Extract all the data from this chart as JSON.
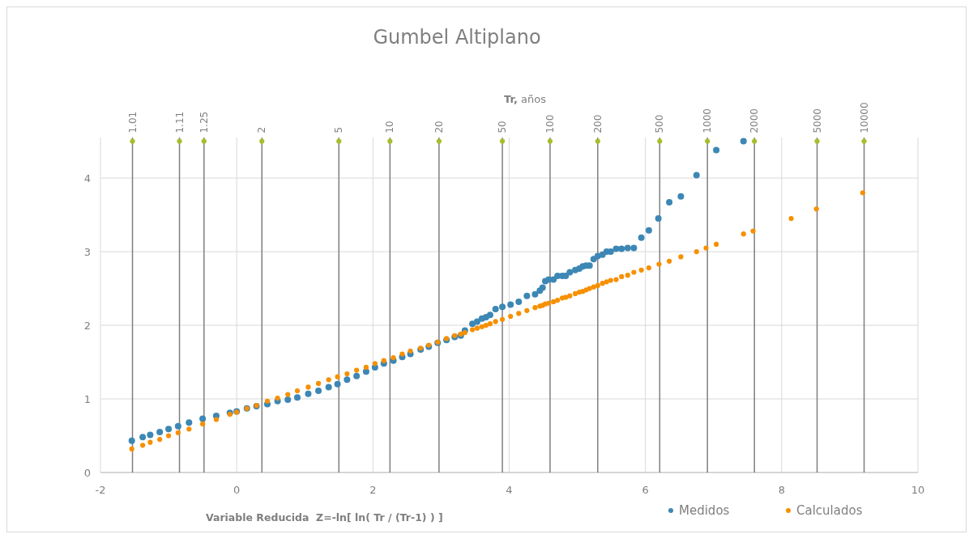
{
  "chart_data": {
    "type": "scatter",
    "title": "Gumbel Altiplano",
    "xlabel": "Variable Reducida  Z=-ln[ ln( Tr / (Tr-1) ) ]",
    "annotations": [
      "Tr, años",
      {
        "text": "1.01",
        "x": -1.53,
        "y": 4.5
      },
      {
        "text": "1.11",
        "x": -0.84,
        "y": 4.5
      },
      {
        "text": "1.25",
        "x": -0.48,
        "y": 4.5
      },
      {
        "text": "2",
        "x": 0.37,
        "y": 4.5
      },
      {
        "text": "5",
        "x": 1.5,
        "y": 4.5
      },
      {
        "text": "10",
        "x": 2.25,
        "y": 4.5
      },
      {
        "text": "20",
        "x": 2.97,
        "y": 4.5
      },
      {
        "text": "50",
        "x": 3.9,
        "y": 4.5
      },
      {
        "text": "100",
        "x": 4.6,
        "y": 4.5
      },
      {
        "text": "200",
        "x": 5.3,
        "y": 4.5
      },
      {
        "text": "500",
        "x": 6.21,
        "y": 4.5
      },
      {
        "text": "1000",
        "x": 6.91,
        "y": 4.5
      },
      {
        "text": "2000",
        "x": 7.6,
        "y": 4.5
      },
      {
        "text": "5000",
        "x": 8.52,
        "y": 4.5
      },
      {
        "text": "10000",
        "x": 9.21,
        "y": 4.5
      }
    ],
    "xlim": [
      -2,
      10
    ],
    "xticks": [
      -2,
      0,
      2,
      4,
      6,
      8,
      10
    ],
    "ylim": [
      0,
      4.55
    ],
    "yticks": [
      0,
      1,
      2,
      3,
      4
    ],
    "grid": true,
    "legend": "bottom right",
    "marker": "circle",
    "series": [
      {
        "name": "Medidos",
        "color": "#3d87b5",
        "x": [
          -1.54,
          -1.38,
          -1.27,
          -1.13,
          -1.0,
          -0.86,
          -0.7,
          -0.5,
          -0.3,
          -0.1,
          0.0,
          0.15,
          0.29,
          0.45,
          0.6,
          0.75,
          0.89,
          1.05,
          1.2,
          1.35,
          1.48,
          1.62,
          1.76,
          1.9,
          2.03,
          2.16,
          2.3,
          2.43,
          2.55,
          2.7,
          2.82,
          2.95,
          3.08,
          3.2,
          3.29,
          3.35,
          3.46,
          3.53,
          3.6,
          3.66,
          3.72,
          3.8,
          3.9,
          4.02,
          4.14,
          4.26,
          4.38,
          4.45,
          4.49,
          4.53,
          4.58,
          4.65,
          4.71,
          4.78,
          4.83,
          4.89,
          4.97,
          5.03,
          5.08,
          5.13,
          5.18,
          5.24,
          5.3,
          5.37,
          5.43,
          5.49,
          5.57,
          5.65,
          5.74,
          5.83,
          5.94,
          6.05,
          6.19,
          6.35,
          6.52,
          6.75,
          7.04,
          7.44
        ],
        "values": [
          0.43,
          0.48,
          0.51,
          0.55,
          0.59,
          0.63,
          0.68,
          0.73,
          0.77,
          0.81,
          0.83,
          0.87,
          0.9,
          0.93,
          0.97,
          0.99,
          1.02,
          1.07,
          1.11,
          1.16,
          1.2,
          1.26,
          1.31,
          1.37,
          1.43,
          1.48,
          1.52,
          1.57,
          1.61,
          1.67,
          1.71,
          1.76,
          1.8,
          1.84,
          1.86,
          1.93,
          2.02,
          2.05,
          2.09,
          2.11,
          2.14,
          2.22,
          2.25,
          2.28,
          2.32,
          2.4,
          2.42,
          2.47,
          2.51,
          2.6,
          2.62,
          2.62,
          2.67,
          2.67,
          2.67,
          2.72,
          2.75,
          2.77,
          2.8,
          2.81,
          2.81,
          2.9,
          2.94,
          2.96,
          3.0,
          3.0,
          3.04,
          3.04,
          3.05,
          3.05,
          3.19,
          3.29,
          3.45,
          3.67,
          3.75,
          4.04,
          4.38,
          4.5
        ]
      },
      {
        "name": "Calculados",
        "color": "#f79000",
        "x": [
          -1.54,
          -1.38,
          -1.27,
          -1.13,
          -1.0,
          -0.86,
          -0.7,
          -0.5,
          -0.3,
          -0.1,
          0.0,
          0.15,
          0.29,
          0.45,
          0.6,
          0.75,
          0.89,
          1.05,
          1.2,
          1.35,
          1.48,
          1.62,
          1.76,
          1.9,
          2.03,
          2.16,
          2.3,
          2.43,
          2.55,
          2.7,
          2.82,
          2.95,
          3.08,
          3.2,
          3.29,
          3.35,
          3.46,
          3.53,
          3.6,
          3.66,
          3.72,
          3.8,
          3.9,
          4.02,
          4.14,
          4.26,
          4.38,
          4.45,
          4.49,
          4.53,
          4.58,
          4.65,
          4.71,
          4.78,
          4.83,
          4.89,
          4.97,
          5.03,
          5.08,
          5.13,
          5.18,
          5.24,
          5.3,
          5.37,
          5.43,
          5.49,
          5.57,
          5.65,
          5.74,
          5.83,
          5.94,
          6.05,
          6.2,
          6.35,
          6.52,
          6.75,
          6.89,
          7.04,
          7.44,
          7.58,
          8.14,
          8.51,
          9.19
        ],
        "values": [
          0.32,
          0.37,
          0.41,
          0.45,
          0.5,
          0.54,
          0.59,
          0.66,
          0.72,
          0.79,
          0.82,
          0.87,
          0.91,
          0.97,
          1.01,
          1.06,
          1.11,
          1.16,
          1.21,
          1.26,
          1.3,
          1.34,
          1.39,
          1.43,
          1.48,
          1.52,
          1.56,
          1.61,
          1.65,
          1.69,
          1.73,
          1.77,
          1.82,
          1.86,
          1.88,
          1.9,
          1.94,
          1.96,
          1.98,
          2.0,
          2.02,
          2.05,
          2.08,
          2.12,
          2.16,
          2.2,
          2.24,
          2.26,
          2.27,
          2.29,
          2.3,
          2.32,
          2.34,
          2.37,
          2.38,
          2.4,
          2.43,
          2.45,
          2.46,
          2.48,
          2.5,
          2.52,
          2.54,
          2.57,
          2.59,
          2.61,
          2.62,
          2.66,
          2.68,
          2.72,
          2.75,
          2.78,
          2.83,
          2.87,
          2.93,
          3.0,
          3.05,
          3.1,
          3.24,
          3.28,
          3.45,
          3.58,
          3.8
        ]
      },
      {
        "color": "#a5bf2c",
        "x": [
          -1.53,
          -0.84,
          -0.48,
          0.37,
          1.5,
          2.25,
          2.97,
          3.9,
          4.6,
          5.3,
          6.21,
          6.91,
          7.6,
          8.52,
          9.21
        ],
        "values": [
          4.5,
          4.5,
          4.5,
          4.5,
          4.5,
          4.5,
          4.5,
          4.5,
          4.5,
          4.5,
          4.5,
          4.5,
          4.5,
          4.5,
          4.5
        ]
      }
    ],
    "ref_lines": [
      {
        "axis": "x",
        "value": -1.53,
        "color": "#7f7f7f"
      },
      {
        "axis": "x",
        "value": -0.84,
        "color": "#7f7f7f"
      },
      {
        "axis": "x",
        "value": -0.48,
        "color": "#7f7f7f"
      },
      {
        "axis": "x",
        "value": 0.37,
        "color": "#7f7f7f"
      },
      {
        "axis": "x",
        "value": 1.5,
        "color": "#7f7f7f"
      },
      {
        "axis": "x",
        "value": 2.25,
        "color": "#7f7f7f"
      },
      {
        "axis": "x",
        "value": 2.97,
        "color": "#7f7f7f"
      },
      {
        "axis": "x",
        "value": 3.9,
        "color": "#7f7f7f"
      },
      {
        "axis": "x",
        "value": 4.6,
        "color": "#7f7f7f"
      },
      {
        "axis": "x",
        "value": 5.3,
        "color": "#7f7f7f"
      },
      {
        "axis": "x",
        "value": 6.21,
        "color": "#7f7f7f"
      },
      {
        "axis": "x",
        "value": 6.91,
        "color": "#7f7f7f"
      },
      {
        "axis": "x",
        "value": 7.6,
        "color": "#7f7f7f"
      },
      {
        "axis": "x",
        "value": 8.52,
        "color": "#7f7f7f"
      },
      {
        "axis": "x",
        "value": 9.21,
        "color": "#7f7f7f"
      }
    ]
  }
}
